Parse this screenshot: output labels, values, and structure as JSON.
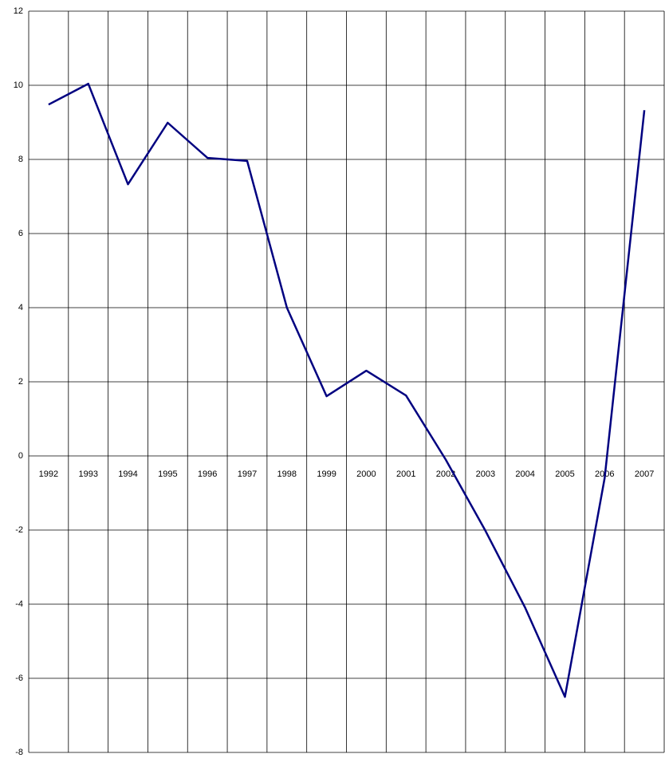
{
  "chart_data": {
    "type": "line",
    "categories": [
      "1992",
      "1993",
      "1994",
      "1995",
      "1996",
      "1997",
      "1998",
      "1999",
      "2000",
      "2001",
      "2002",
      "2003",
      "2004",
      "2005",
      "2006",
      "2007"
    ],
    "values": [
      9.48,
      10.04,
      7.33,
      8.99,
      8.04,
      7.96,
      4.0,
      1.61,
      2.3,
      1.63,
      -0.1,
      -2.02,
      -4.1,
      -6.5,
      -0.6,
      9.33
    ],
    "color": "#000080",
    "ylim": [
      -8,
      12
    ],
    "yticks": [
      -8,
      -6,
      -4,
      -2,
      0,
      2,
      4,
      6,
      8,
      10,
      12
    ],
    "grid": true
  }
}
